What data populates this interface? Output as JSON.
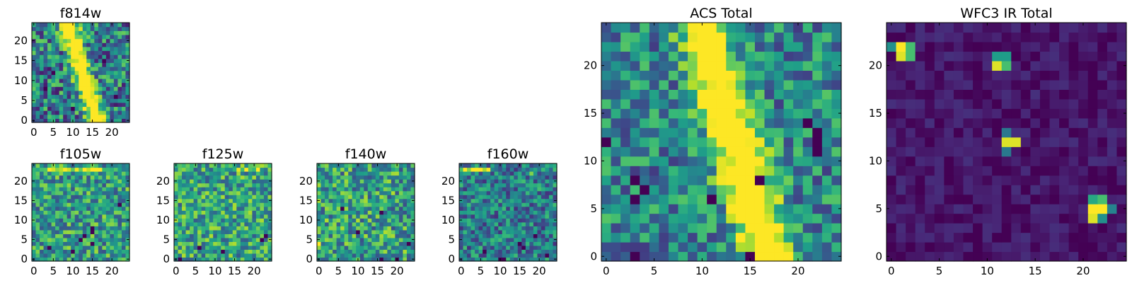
{
  "colormap": {
    "name": "viridis",
    "stops": [
      "#440154",
      "#482878",
      "#3e4989",
      "#31688e",
      "#26828e",
      "#1f9e89",
      "#35b779",
      "#6ece58",
      "#b5de2b",
      "#fde725"
    ]
  },
  "chart_data": [
    {
      "id": "f814w",
      "type": "heatmap",
      "title": "f814w",
      "xlim": [
        0,
        24
      ],
      "ylim": [
        0,
        24
      ],
      "xticks": [
        "0",
        "5",
        "10",
        "15",
        "20"
      ],
      "yticks": [
        "0",
        "5",
        "10",
        "15",
        "20"
      ],
      "features": [
        {
          "kind": "band",
          "x_at_top": 9,
          "x_at_bottom": 16,
          "width": 1.6,
          "amp": 0.9
        }
      ],
      "dark_cells": [
        [
          3,
          8
        ],
        [
          5,
          12
        ],
        [
          10,
          3
        ],
        [
          18,
          15
        ],
        [
          21,
          6
        ]
      ],
      "noise": 0.35,
      "base": 0.42,
      "seed": 11
    },
    {
      "id": "f105w",
      "type": "heatmap",
      "title": "f105w",
      "xlim": [
        0,
        24
      ],
      "ylim": [
        0,
        24
      ],
      "xticks": [
        "0",
        "5",
        "10",
        "15",
        "20"
      ],
      "yticks": [
        "0",
        "5",
        "10",
        "15",
        "20"
      ],
      "features": [
        {
          "kind": "hot_row",
          "y": 23,
          "x_from": 4,
          "x_to": 18,
          "amp": 0.4
        }
      ],
      "dark_cells": [
        [
          15,
          8
        ],
        [
          15,
          7
        ],
        [
          13,
          6
        ],
        [
          12,
          5
        ],
        [
          15,
          4
        ],
        [
          4,
          3
        ],
        [
          10,
          2
        ],
        [
          22,
          14
        ]
      ],
      "noise": 0.3,
      "base": 0.55,
      "seed": 23
    },
    {
      "id": "f125w",
      "type": "heatmap",
      "title": "f125w",
      "xlim": [
        0,
        24
      ],
      "ylim": [
        0,
        24
      ],
      "xticks": [
        "0",
        "5",
        "10",
        "15",
        "20"
      ],
      "yticks": [
        "0",
        "5",
        "10",
        "15",
        "20"
      ],
      "features": [
        {
          "kind": "hot_row",
          "y": 23,
          "x_from": 16,
          "x_to": 21,
          "amp": 0.35
        }
      ],
      "dark_cells": [
        [
          1,
          0
        ],
        [
          6,
          3
        ],
        [
          23,
          6
        ],
        [
          22,
          5
        ],
        [
          12,
          2
        ]
      ],
      "noise": 0.3,
      "base": 0.58,
      "seed": 37
    },
    {
      "id": "f140w",
      "type": "heatmap",
      "title": "f140w",
      "xlim": [
        0,
        24
      ],
      "ylim": [
        0,
        24
      ],
      "xticks": [
        "0",
        "5",
        "10",
        "15",
        "20"
      ],
      "yticks": [
        "0",
        "5",
        "10",
        "15",
        "20"
      ],
      "features": [
        {
          "kind": "hot_cell",
          "x": 0,
          "y": 4,
          "amp": 0.5
        }
      ],
      "dark_cells": [
        [
          6,
          13
        ],
        [
          16,
          12
        ],
        [
          16,
          0
        ],
        [
          20,
          0
        ],
        [
          23,
          4
        ],
        [
          10,
          7
        ]
      ],
      "noise": 0.32,
      "base": 0.56,
      "seed": 53
    },
    {
      "id": "f160w",
      "type": "heatmap",
      "title": "f160w",
      "xlim": [
        0,
        24
      ],
      "ylim": [
        0,
        24
      ],
      "xticks": [
        "0",
        "5",
        "10",
        "15",
        "20"
      ],
      "yticks": [
        "0",
        "5",
        "10",
        "15",
        "20"
      ],
      "features": [
        {
          "kind": "hot_row",
          "y": 23,
          "x_from": 0,
          "x_to": 7,
          "amp": 0.45
        },
        {
          "kind": "hot_cell",
          "x": 18,
          "y": 22,
          "amp": 0.4
        }
      ],
      "dark_cells": [
        [
          15,
          4
        ],
        [
          16,
          3
        ],
        [
          6,
          2
        ],
        [
          22,
          1
        ],
        [
          10,
          0
        ],
        [
          11,
          0
        ],
        [
          19,
          6
        ]
      ],
      "noise": 0.28,
      "base": 0.42,
      "seed": 71
    },
    {
      "id": "acs_total",
      "type": "heatmap",
      "title": "ACS Total",
      "xlim": [
        0,
        24
      ],
      "ylim": [
        0,
        24
      ],
      "xticks": [
        "0",
        "5",
        "10",
        "15",
        "20"
      ],
      "yticks": [
        "0",
        "5",
        "10",
        "15",
        "20"
      ],
      "features": [
        {
          "kind": "band",
          "x_at_top": 10,
          "x_at_bottom": 17,
          "width": 1.8,
          "amp": 0.85
        }
      ],
      "dark_cells": [
        [
          0,
          12
        ],
        [
          3,
          8
        ],
        [
          4,
          7
        ],
        [
          3,
          6
        ],
        [
          3,
          0
        ],
        [
          11,
          6
        ],
        [
          15,
          0
        ],
        [
          22,
          11
        ],
        [
          22,
          12
        ],
        [
          22,
          13
        ],
        [
          21,
          14
        ],
        [
          16,
          8
        ]
      ],
      "noise": 0.28,
      "base": 0.45,
      "seed": 97
    },
    {
      "id": "wfc3_ir_total",
      "type": "heatmap",
      "title": "WFC3 IR Total",
      "xlim": [
        0,
        24
      ],
      "ylim": [
        0,
        24
      ],
      "xticks": [
        "0",
        "5",
        "10",
        "15",
        "20"
      ],
      "yticks": [
        "0",
        "5",
        "10",
        "15",
        "20"
      ],
      "features": [
        {
          "kind": "blob",
          "cells": [
            [
              1,
              22,
              1.0
            ],
            [
              2,
              22,
              0.7
            ],
            [
              1,
              21,
              0.95
            ],
            [
              2,
              21,
              0.7
            ],
            [
              0,
              22,
              0.5
            ]
          ]
        },
        {
          "kind": "blob",
          "cells": [
            [
              11,
              20,
              0.95
            ],
            [
              12,
              20,
              0.7
            ],
            [
              11,
              21,
              0.55
            ],
            [
              12,
              21,
              0.55
            ]
          ]
        },
        {
          "kind": "blob",
          "cells": [
            [
              12,
              12,
              0.95
            ],
            [
              13,
              12,
              0.95
            ],
            [
              12,
              13,
              0.4
            ],
            [
              12,
              11,
              0.4
            ]
          ]
        },
        {
          "kind": "blob",
          "cells": [
            [
              21,
              5,
              1.0
            ],
            [
              22,
              5,
              1.0
            ],
            [
              21,
              4,
              0.95
            ],
            [
              22,
              4,
              0.5
            ],
            [
              22,
              6,
              0.7
            ],
            [
              21,
              6,
              0.6
            ],
            [
              23,
              5,
              0.45
            ]
          ]
        }
      ],
      "dark_cells": [],
      "noise": 0.08,
      "base": 0.06,
      "seed": 131
    }
  ]
}
